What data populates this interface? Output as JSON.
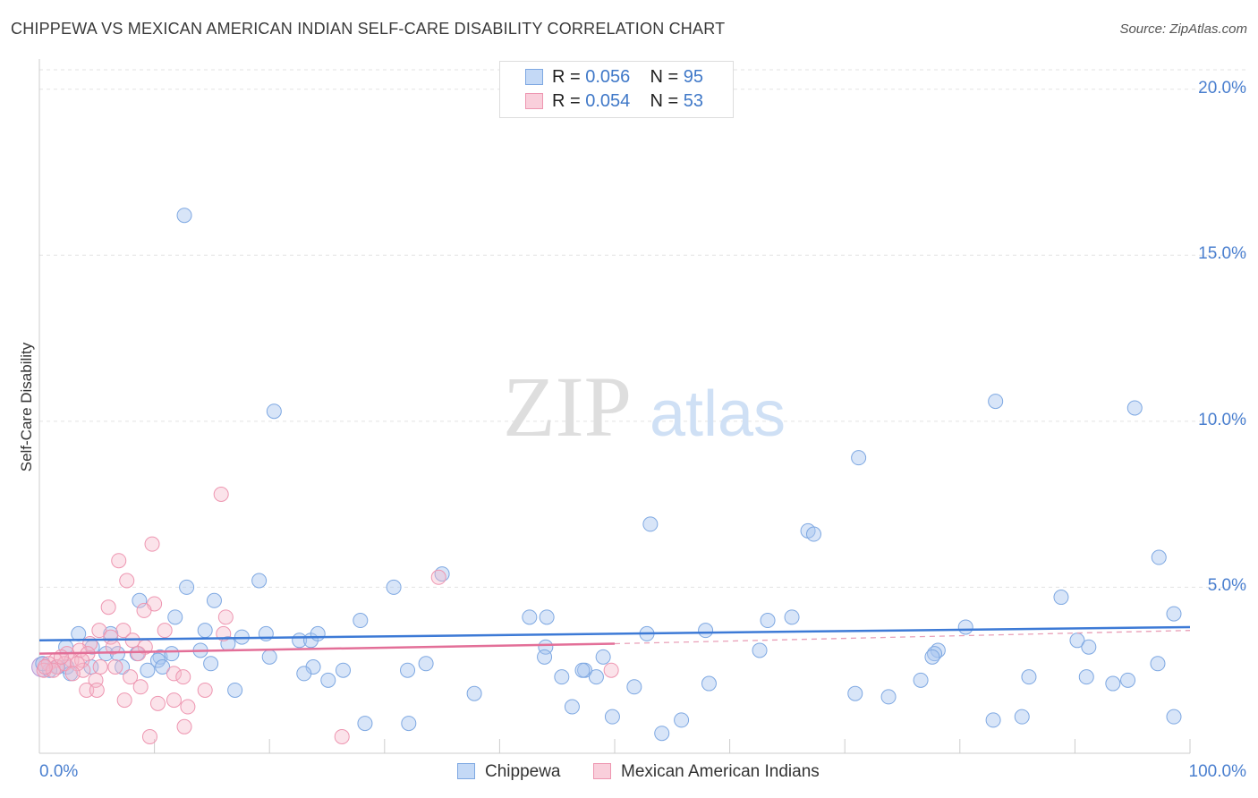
{
  "header": {
    "title": "CHIPPEWA VS MEXICAN AMERICAN INDIAN SELF-CARE DISABILITY CORRELATION CHART",
    "source": "Source: ZipAtlas.com"
  },
  "watermark": {
    "part1": "ZIP",
    "part2": "atlas"
  },
  "stats": [
    {
      "r_label": "R = ",
      "r_value": "0.056",
      "n_label": "N = ",
      "n_value": "95",
      "color": "#a8c6f0"
    },
    {
      "r_label": "R = ",
      "r_value": "0.054",
      "n_label": "N = ",
      "n_value": "53",
      "color": "#f5b8ca"
    }
  ],
  "legend": [
    {
      "label": "Chippewa",
      "color": "#a8c6f0"
    },
    {
      "label": "Mexican American Indians",
      "color": "#f5b8ca"
    }
  ],
  "chart_data": {
    "type": "scatter",
    "title": "CHIPPEWA VS MEXICAN AMERICAN INDIAN SELF-CARE DISABILITY CORRELATION CHART",
    "xlabel": "",
    "ylabel": "Self-Care Disability",
    "xlim": [
      0,
      100
    ],
    "ylim": [
      0,
      20.8
    ],
    "x_tick_labels": [
      "0.0%",
      "100.0%"
    ],
    "y_ticks": [
      5,
      10,
      15,
      20
    ],
    "y_tick_labels": [
      "5.0%",
      "10.0%",
      "15.0%",
      "20.0%"
    ],
    "grid": true,
    "legend_position": "bottom-center",
    "colors": {
      "Chippewa": "#4a84d6",
      "Mexican American Indians": "#e36f98"
    },
    "series": [
      {
        "name": "Chippewa",
        "trend": {
          "x0": 0,
          "y0": 3.4,
          "x1": 100,
          "y1": 3.8
        },
        "points": [
          [
            12.6,
            16.2
          ],
          [
            20.4,
            10.3
          ],
          [
            83.1,
            10.6
          ],
          [
            95.2,
            10.4
          ],
          [
            71.2,
            8.9
          ],
          [
            53.1,
            6.9
          ],
          [
            66.8,
            6.7
          ],
          [
            67.3,
            6.6
          ],
          [
            97.3,
            5.9
          ],
          [
            19.1,
            5.2
          ],
          [
            12.8,
            5.0
          ],
          [
            30.8,
            5.0
          ],
          [
            35.0,
            5.4
          ],
          [
            88.8,
            4.7
          ],
          [
            8.7,
            4.6
          ],
          [
            15.2,
            4.6
          ],
          [
            98.6,
            4.2
          ],
          [
            11.8,
            4.1
          ],
          [
            42.6,
            4.1
          ],
          [
            44.1,
            4.1
          ],
          [
            63.3,
            4.0
          ],
          [
            65.4,
            4.1
          ],
          [
            27.9,
            4.0
          ],
          [
            57.9,
            3.7
          ],
          [
            80.5,
            3.8
          ],
          [
            14.4,
            3.7
          ],
          [
            19.7,
            3.6
          ],
          [
            3.4,
            3.6
          ],
          [
            6.2,
            3.6
          ],
          [
            52.8,
            3.6
          ],
          [
            16.4,
            3.3
          ],
          [
            17.6,
            3.5
          ],
          [
            22.6,
            3.4
          ],
          [
            23.6,
            3.4
          ],
          [
            90.2,
            3.4
          ],
          [
            2.3,
            3.2
          ],
          [
            4.6,
            3.2
          ],
          [
            14.0,
            3.1
          ],
          [
            44.0,
            3.2
          ],
          [
            62.6,
            3.1
          ],
          [
            78.1,
            3.1
          ],
          [
            91.2,
            3.2
          ],
          [
            5.8,
            3.0
          ],
          [
            10.5,
            2.9
          ],
          [
            11.5,
            3.0
          ],
          [
            8.5,
            3.0
          ],
          [
            77.8,
            3.0
          ],
          [
            77.6,
            2.9
          ],
          [
            49.0,
            2.9
          ],
          [
            43.9,
            2.9
          ],
          [
            10.3,
            2.8
          ],
          [
            14.9,
            2.7
          ],
          [
            33.6,
            2.7
          ],
          [
            10.7,
            2.6
          ],
          [
            4.5,
            2.6
          ],
          [
            7.2,
            2.6
          ],
          [
            23.8,
            2.6
          ],
          [
            2.4,
            2.6
          ],
          [
            47.4,
            2.5
          ],
          [
            32.0,
            2.5
          ],
          [
            26.4,
            2.5
          ],
          [
            9.4,
            2.5
          ],
          [
            2.7,
            2.4
          ],
          [
            1.6,
            2.6
          ],
          [
            0.9,
            2.5
          ],
          [
            0.3,
            2.7
          ],
          [
            97.2,
            2.7
          ],
          [
            23.0,
            2.4
          ],
          [
            45.4,
            2.3
          ],
          [
            76.6,
            2.2
          ],
          [
            86.0,
            2.3
          ],
          [
            91.0,
            2.3
          ],
          [
            25.1,
            2.2
          ],
          [
            94.6,
            2.2
          ],
          [
            93.3,
            2.1
          ],
          [
            51.7,
            2.0
          ],
          [
            58.2,
            2.1
          ],
          [
            17.0,
            1.9
          ],
          [
            37.8,
            1.8
          ],
          [
            70.9,
            1.8
          ],
          [
            73.8,
            1.7
          ],
          [
            46.3,
            1.4
          ],
          [
            49.8,
            1.1
          ],
          [
            55.8,
            1.0
          ],
          [
            28.3,
            0.9
          ],
          [
            32.1,
            0.9
          ],
          [
            82.9,
            1.0
          ],
          [
            85.4,
            1.1
          ],
          [
            98.6,
            1.1
          ],
          [
            54.1,
            0.6
          ],
          [
            47.2,
            2.5
          ],
          [
            6.8,
            3.0
          ],
          [
            48.4,
            2.3
          ],
          [
            20.0,
            2.9
          ],
          [
            24.2,
            3.6
          ]
        ]
      },
      {
        "name": "Mexican American Indians",
        "trend": {
          "x0": 0,
          "y0": 3.0,
          "x1": 50,
          "y1": 3.3,
          "dashed_to": {
            "x": 100,
            "y": 3.7
          }
        },
        "points": [
          [
            15.8,
            7.8
          ],
          [
            9.8,
            6.3
          ],
          [
            6.9,
            5.8
          ],
          [
            7.6,
            5.2
          ],
          [
            34.7,
            5.3
          ],
          [
            10.0,
            4.5
          ],
          [
            6.0,
            4.4
          ],
          [
            9.1,
            4.3
          ],
          [
            16.2,
            4.1
          ],
          [
            5.2,
            3.7
          ],
          [
            7.3,
            3.7
          ],
          [
            16.0,
            3.6
          ],
          [
            6.2,
            3.5
          ],
          [
            8.1,
            3.4
          ],
          [
            4.4,
            3.3
          ],
          [
            6.4,
            3.2
          ],
          [
            9.2,
            3.2
          ],
          [
            3.5,
            3.1
          ],
          [
            4.2,
            3.0
          ],
          [
            2.4,
            3.0
          ],
          [
            2.8,
            2.8
          ],
          [
            3.7,
            2.8
          ],
          [
            1.4,
            2.8
          ],
          [
            0.8,
            2.7
          ],
          [
            0.4,
            2.5
          ],
          [
            1.5,
            2.6
          ],
          [
            2.2,
            2.7
          ],
          [
            1.2,
            2.5
          ],
          [
            5.3,
            2.6
          ],
          [
            6.6,
            2.6
          ],
          [
            11.7,
            2.4
          ],
          [
            7.9,
            2.3
          ],
          [
            12.5,
            2.3
          ],
          [
            3.8,
            2.5
          ],
          [
            4.9,
            2.2
          ],
          [
            8.8,
            2.0
          ],
          [
            14.4,
            1.9
          ],
          [
            4.1,
            1.9
          ],
          [
            5.0,
            1.9
          ],
          [
            11.7,
            1.6
          ],
          [
            7.4,
            1.6
          ],
          [
            10.3,
            1.5
          ],
          [
            12.9,
            1.4
          ],
          [
            12.6,
            0.8
          ],
          [
            9.6,
            0.5
          ],
          [
            26.3,
            0.5
          ],
          [
            49.7,
            2.5
          ],
          [
            10.9,
            3.7
          ],
          [
            3.3,
            2.7
          ],
          [
            1.9,
            2.9
          ],
          [
            0.5,
            2.6
          ],
          [
            2.9,
            2.4
          ],
          [
            8.6,
            3.0
          ]
        ]
      }
    ]
  }
}
